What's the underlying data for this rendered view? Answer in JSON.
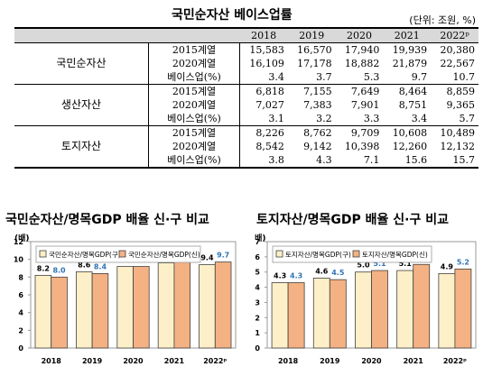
{
  "table": {
    "title": "국민순자산 베이스업률",
    "unit": "(단위: 조원, %)",
    "years": [
      "2018",
      "2019",
      "2020",
      "2021",
      "2022ᵖ"
    ],
    "rows": [
      {
        "cat": "국민순자산",
        "sub": "2015계열",
        "values": [
          "15,583",
          "16,570",
          "17,940",
          "19,939",
          "20,380"
        ]
      },
      {
        "cat": "",
        "sub": "2020계열",
        "values": [
          "16,109",
          "17,178",
          "18,882",
          "21,879",
          "22,567"
        ]
      },
      {
        "cat": "",
        "sub": "베이스업(%)",
        "values": [
          "3.4",
          "3.7",
          "5.3",
          "9.7",
          "10.7"
        ]
      },
      {
        "cat": "생산자산",
        "sub": "2015계열",
        "values": [
          "6,818",
          "7,155",
          "7,649",
          "8,464",
          "8,859"
        ]
      },
      {
        "cat": "",
        "sub": "2020계열",
        "values": [
          "7,027",
          "7,383",
          "7,901",
          "8,751",
          "9,365"
        ]
      },
      {
        "cat": "",
        "sub": "베이스업(%)",
        "values": [
          "3.1",
          "3.2",
          "3.3",
          "3.4",
          "5.7"
        ]
      },
      {
        "cat": "토지자산",
        "sub": "2015계열",
        "values": [
          "8,226",
          "8,762",
          "9,709",
          "10,608",
          "10,489"
        ]
      },
      {
        "cat": "",
        "sub": "2020계열",
        "values": [
          "8,542",
          "9,142",
          "10,398",
          "12,260",
          "12,132"
        ]
      },
      {
        "cat": "",
        "sub": "베이스업(%)",
        "values": [
          "3.8",
          "4.3",
          "7.1",
          "15.6",
          "15.7"
        ]
      }
    ]
  },
  "chart_data": [
    {
      "type": "bar",
      "title": "국민순자산/명목GDP 배율 신·구 비교",
      "ylabel": "(배)",
      "ylim": [
        0,
        12
      ],
      "yticks": [
        "0",
        "2",
        "4",
        "6",
        "8",
        "10",
        "12"
      ],
      "categories": [
        "2018",
        "2019",
        "2020",
        "2021",
        "2022ᵖ"
      ],
      "series": [
        {
          "name": "국민순자산/명목GDP(구)",
          "values": [
            8.2,
            8.6,
            9.2,
            9.6,
            9.4
          ],
          "labels": [
            "8.2",
            "8.6",
            "9.2",
            "9.6",
            "9.4"
          ],
          "color": "#fdf0c8",
          "label_color": "#000000"
        },
        {
          "name": "국민순자산/명목GDP(신)",
          "values": [
            8.0,
            8.4,
            9.2,
            9.8,
            9.7
          ],
          "labels": [
            "8.0",
            "8.4",
            "9.2",
            "9.8",
            "9.7"
          ],
          "color": "#f4b183",
          "label_color": "#2e75b6"
        }
      ],
      "legend": "top-left",
      "grid": false
    },
    {
      "type": "bar",
      "title": "토지자산/명목GDP 배율 신·구 비교",
      "ylabel": "(배)",
      "ylim": [
        0,
        7
      ],
      "yticks": [
        "0",
        "1",
        "2",
        "3",
        "4",
        "5",
        "6",
        "7"
      ],
      "categories": [
        "2018",
        "2019",
        "2020",
        "2021",
        "2022ᵖ"
      ],
      "series": [
        {
          "name": "토지자산/명목GDP(구)",
          "values": [
            4.3,
            4.6,
            5.0,
            5.1,
            4.9
          ],
          "labels": [
            "4.3",
            "4.6",
            "5.0",
            "5.1",
            "4.9"
          ],
          "color": "#fdf0c8",
          "label_color": "#000000"
        },
        {
          "name": "토지자산/명목GDP(신)",
          "values": [
            4.3,
            4.5,
            5.1,
            5.5,
            5.2
          ],
          "labels": [
            "4.3",
            "4.5",
            "5.1",
            "5.5",
            "5.2"
          ],
          "color": "#f4b183",
          "label_color": "#2e75b6"
        }
      ],
      "legend": "top-left",
      "grid": false
    }
  ]
}
